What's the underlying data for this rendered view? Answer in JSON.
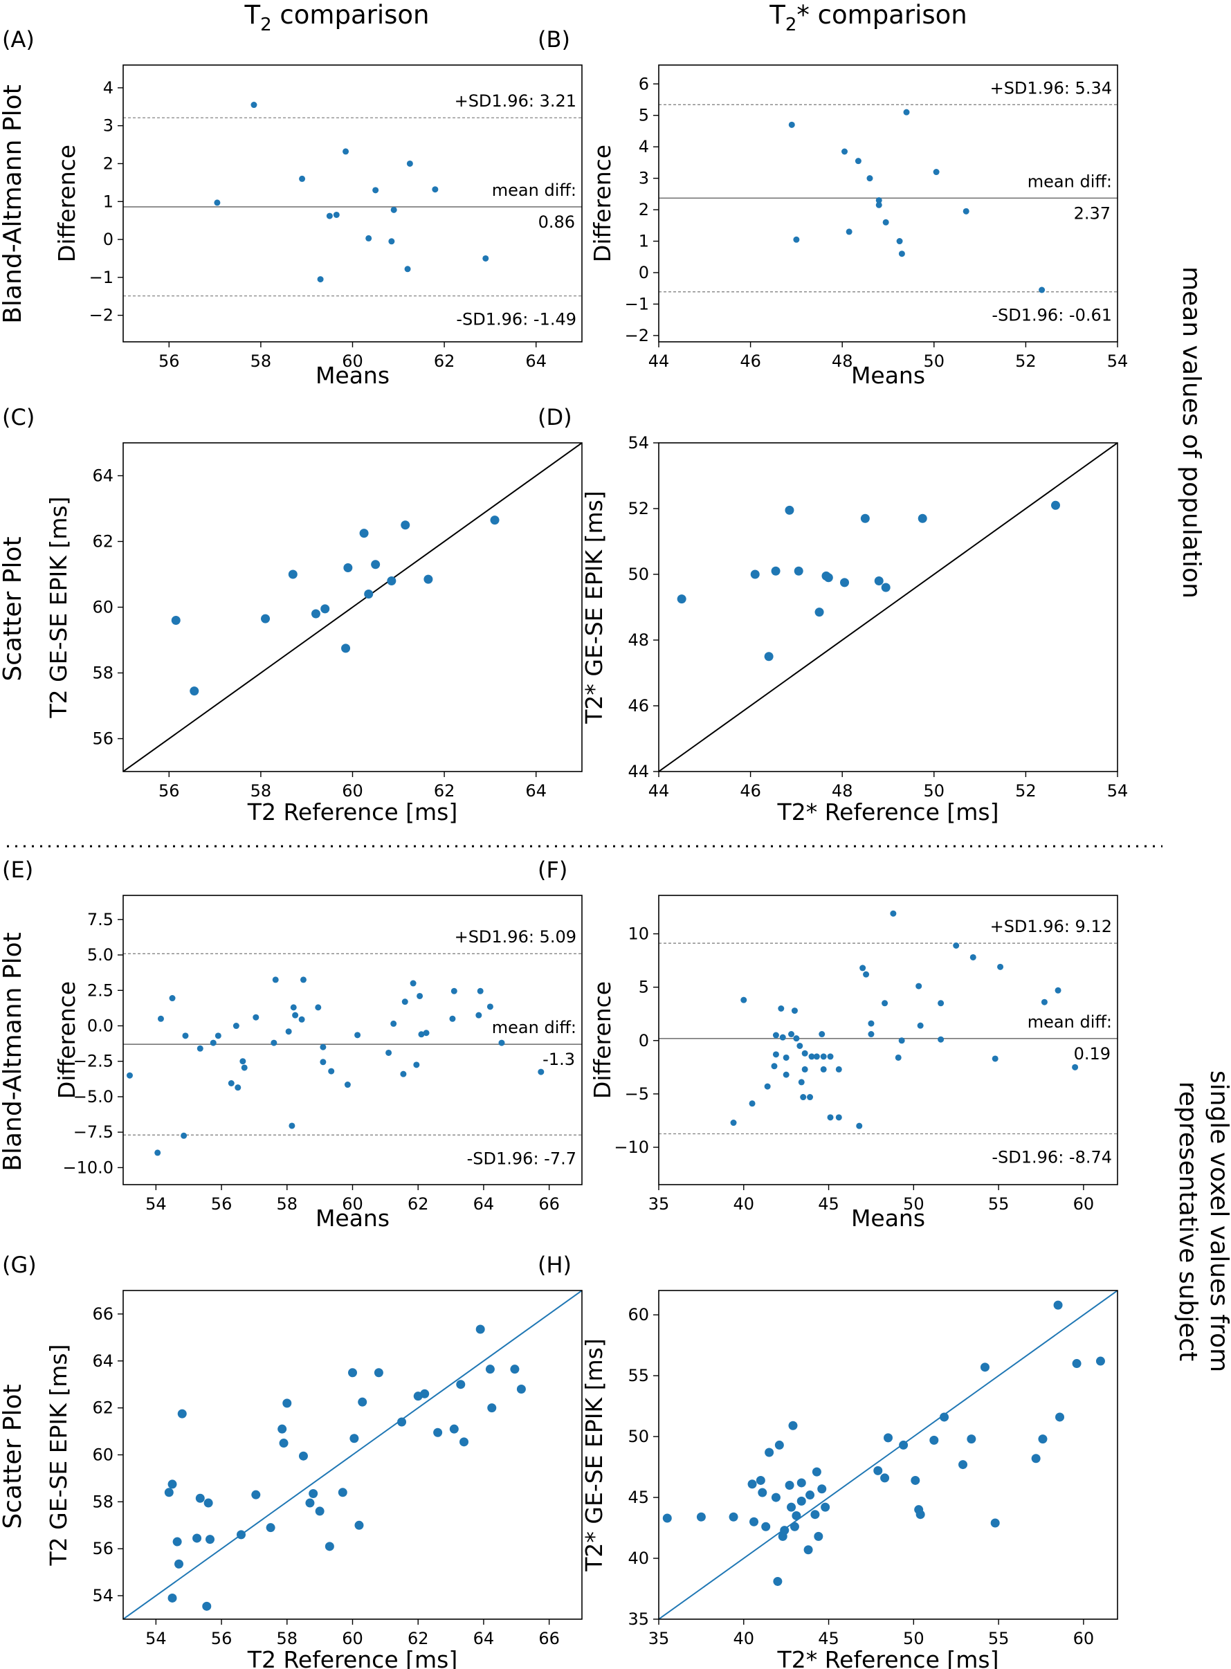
{
  "figure": {
    "column_titles": [
      "T2 comparison",
      "T2* comparison"
    ],
    "row_labels": {
      "bland_altmann": "Bland-Altmann Plot",
      "scatter": "Scatter Plot"
    },
    "side_labels": {
      "top": "mean values of population",
      "bottom_line1": "single voxel values from",
      "bottom_line2": "representative subject"
    },
    "colors": {
      "points": "#1f77b4",
      "identity_line_top": "#000000",
      "identity_line_bottom": "#1f77b4",
      "mean_line": "#777777",
      "sd_line": "#777777"
    }
  },
  "chart_data": [
    {
      "panel": "(A)",
      "type": "scatter",
      "subtype": "bland-altman",
      "xlabel": "Means",
      "ylabel": "Difference",
      "xlim": [
        55,
        65
      ],
      "ylim": [
        -2.7,
        4.6
      ],
      "xticks": [
        56,
        58,
        60,
        62,
        64
      ],
      "yticks": [
        -2,
        -1,
        0,
        1,
        2,
        3,
        4
      ],
      "mean_diff": 0.86,
      "upper": 3.21,
      "lower": -1.49,
      "mean_label": "mean diff:",
      "mean_value": "0.86",
      "upper_label": "+SD1.96: 3.21",
      "lower_label": "-SD1.96: -1.49",
      "points": [
        [
          57.05,
          0.97
        ],
        [
          57.85,
          3.55
        ],
        [
          58.9,
          1.6
        ],
        [
          59.3,
          -1.05
        ],
        [
          59.5,
          0.62
        ],
        [
          59.65,
          0.65
        ],
        [
          59.85,
          2.32
        ],
        [
          60.35,
          0.03
        ],
        [
          60.5,
          1.3
        ],
        [
          60.85,
          -0.05
        ],
        [
          60.9,
          0.78
        ],
        [
          61.2,
          -0.78
        ],
        [
          61.25,
          2.0
        ],
        [
          61.8,
          1.32
        ],
        [
          62.9,
          -0.5
        ]
      ]
    },
    {
      "panel": "(B)",
      "type": "scatter",
      "subtype": "bland-altman",
      "xlabel": "Means",
      "ylabel": "Difference",
      "xlim": [
        44,
        54
      ],
      "ylim": [
        -2.2,
        6.6
      ],
      "xticks": [
        44,
        46,
        48,
        50,
        52,
        54
      ],
      "yticks": [
        -2,
        -1,
        0,
        1,
        2,
        3,
        4,
        5,
        6
      ],
      "mean_diff": 2.37,
      "upper": 5.34,
      "lower": -0.61,
      "mean_label": "mean diff:",
      "mean_value": "2.37",
      "upper_label": "+SD1.96: 5.34",
      "lower_label": "-SD1.96: -0.61",
      "points": [
        [
          46.9,
          4.7
        ],
        [
          47.0,
          1.05
        ],
        [
          48.05,
          3.85
        ],
        [
          48.15,
          1.3
        ],
        [
          48.35,
          3.55
        ],
        [
          48.6,
          3.0
        ],
        [
          48.8,
          2.3
        ],
        [
          48.8,
          2.15
        ],
        [
          48.95,
          1.6
        ],
        [
          49.25,
          1.0
        ],
        [
          49.3,
          0.6
        ],
        [
          49.4,
          5.1
        ],
        [
          50.05,
          3.2
        ],
        [
          50.7,
          1.95
        ],
        [
          52.35,
          -0.55
        ]
      ]
    },
    {
      "panel": "(C)",
      "type": "scatter",
      "subtype": "identity",
      "xlabel": "T2 Reference [ms]",
      "ylabel": "T2 GE-SE EPIK [ms]",
      "xlim": [
        55,
        65
      ],
      "ylim": [
        55,
        65
      ],
      "xticks": [
        56,
        58,
        60,
        62,
        64
      ],
      "yticks": [
        56,
        58,
        60,
        62,
        64
      ],
      "points": [
        [
          56.15,
          59.6
        ],
        [
          56.55,
          57.45
        ],
        [
          58.1,
          59.65
        ],
        [
          58.7,
          61.0
        ],
        [
          59.2,
          59.8
        ],
        [
          59.4,
          59.95
        ],
        [
          59.85,
          58.75
        ],
        [
          59.9,
          61.2
        ],
        [
          60.25,
          62.25
        ],
        [
          60.35,
          60.4
        ],
        [
          60.5,
          61.3
        ],
        [
          60.85,
          60.8
        ],
        [
          61.15,
          62.5
        ],
        [
          61.65,
          60.85
        ],
        [
          63.1,
          62.65
        ]
      ]
    },
    {
      "panel": "(D)",
      "type": "scatter",
      "subtype": "identity",
      "xlabel": "T2* Reference [ms]",
      "ylabel": "T2* GE-SE EPIK [ms]",
      "xlim": [
        44,
        54
      ],
      "ylim": [
        44,
        54
      ],
      "xticks": [
        44,
        46,
        48,
        50,
        52,
        54
      ],
      "yticks": [
        44,
        46,
        48,
        50,
        52,
        54
      ],
      "points": [
        [
          44.5,
          49.25
        ],
        [
          46.1,
          50.0
        ],
        [
          46.4,
          47.5
        ],
        [
          46.55,
          50.1
        ],
        [
          46.85,
          51.95
        ],
        [
          47.05,
          50.1
        ],
        [
          47.5,
          48.85
        ],
        [
          47.65,
          49.95
        ],
        [
          47.7,
          49.9
        ],
        [
          48.05,
          49.75
        ],
        [
          48.5,
          51.7
        ],
        [
          48.8,
          49.8
        ],
        [
          48.95,
          49.6
        ],
        [
          49.75,
          51.7
        ],
        [
          52.65,
          52.1
        ]
      ]
    },
    {
      "panel": "(E)",
      "type": "scatter",
      "subtype": "bland-altman",
      "xlabel": "Means",
      "ylabel": "Difference",
      "xlim": [
        53,
        67
      ],
      "ylim": [
        -11.2,
        9.2
      ],
      "xticks": [
        54,
        56,
        58,
        60,
        62,
        64,
        66
      ],
      "yticks": [
        -10.0,
        -7.5,
        -5.0,
        -2.5,
        0.0,
        2.5,
        5.0,
        7.5
      ],
      "mean_diff": -1.3,
      "upper": 5.09,
      "lower": -7.7,
      "mean_label": "mean diff:",
      "mean_value": "-1.3",
      "upper_label": "+SD1.96: 5.09",
      "lower_label": "-SD1.96: -7.7",
      "points": [
        [
          53.2,
          -3.5
        ],
        [
          54.05,
          -8.95
        ],
        [
          54.15,
          0.5
        ],
        [
          54.5,
          1.95
        ],
        [
          54.85,
          -7.75
        ],
        [
          54.9,
          -0.7
        ],
        [
          55.35,
          -1.6
        ],
        [
          55.75,
          -1.2
        ],
        [
          55.9,
          -0.7
        ],
        [
          56.3,
          -4.05
        ],
        [
          56.45,
          0.0
        ],
        [
          56.5,
          -4.35
        ],
        [
          56.65,
          -2.5
        ],
        [
          56.7,
          -2.95
        ],
        [
          57.05,
          0.6
        ],
        [
          57.6,
          -1.2
        ],
        [
          57.65,
          3.25
        ],
        [
          58.05,
          -0.4
        ],
        [
          58.15,
          -7.05
        ],
        [
          58.2,
          1.3
        ],
        [
          58.25,
          0.75
        ],
        [
          58.45,
          0.45
        ],
        [
          58.5,
          3.25
        ],
        [
          58.95,
          1.3
        ],
        [
          59.1,
          -1.5
        ],
        [
          59.1,
          -2.55
        ],
        [
          59.35,
          -3.2
        ],
        [
          59.85,
          -4.15
        ],
        [
          60.15,
          -0.65
        ],
        [
          61.1,
          -1.9
        ],
        [
          61.25,
          0.15
        ],
        [
          61.55,
          -3.4
        ],
        [
          61.6,
          1.7
        ],
        [
          61.85,
          3.0
        ],
        [
          61.95,
          -2.75
        ],
        [
          62.05,
          2.1
        ],
        [
          62.1,
          -0.6
        ],
        [
          62.25,
          -0.5
        ],
        [
          63.05,
          0.5
        ],
        [
          63.1,
          2.45
        ],
        [
          63.85,
          0.75
        ],
        [
          63.9,
          2.45
        ],
        [
          64.2,
          1.35
        ],
        [
          64.55,
          -1.2
        ],
        [
          65.75,
          -3.25
        ]
      ]
    },
    {
      "panel": "(F)",
      "type": "scatter",
      "subtype": "bland-altman",
      "xlabel": "Means",
      "ylabel": "Difference",
      "xlim": [
        35,
        62
      ],
      "ylim": [
        -13.5,
        13.6
      ],
      "xticks": [
        35,
        40,
        45,
        50,
        55,
        60
      ],
      "yticks": [
        -10,
        -5,
        0,
        5,
        10
      ],
      "mean_diff": 0.19,
      "upper": 9.12,
      "lower": -8.74,
      "mean_label": "mean diff:",
      "mean_value": "0.19",
      "upper_label": "+SD1.96: 9.12",
      "lower_label": "-SD1.96: -8.74",
      "points": [
        [
          39.4,
          -7.7
        ],
        [
          40.0,
          3.8
        ],
        [
          40.5,
          -5.9
        ],
        [
          41.4,
          -4.3
        ],
        [
          41.8,
          -2.4
        ],
        [
          41.9,
          0.5
        ],
        [
          41.9,
          -1.3
        ],
        [
          42.2,
          3.0
        ],
        [
          42.3,
          0.3
        ],
        [
          42.5,
          -1.6
        ],
        [
          42.5,
          -3.2
        ],
        [
          42.8,
          0.6
        ],
        [
          43.0,
          2.8
        ],
        [
          43.1,
          0.2
        ],
        [
          43.3,
          -0.5
        ],
        [
          43.4,
          -3.9
        ],
        [
          43.5,
          -5.3
        ],
        [
          43.6,
          -1.2
        ],
        [
          43.6,
          -2.7
        ],
        [
          43.9,
          -5.3
        ],
        [
          44.0,
          -1.5
        ],
        [
          44.3,
          -1.5
        ],
        [
          44.6,
          0.6
        ],
        [
          44.7,
          -1.5
        ],
        [
          44.7,
          -2.7
        ],
        [
          45.1,
          -7.2
        ],
        [
          45.1,
          -1.5
        ],
        [
          45.6,
          -2.7
        ],
        [
          45.6,
          -7.2
        ],
        [
          46.8,
          -8.0
        ],
        [
          47.0,
          6.8
        ],
        [
          47.2,
          6.2
        ],
        [
          47.5,
          1.6
        ],
        [
          47.5,
          0.6
        ],
        [
          48.3,
          3.5
        ],
        [
          48.8,
          11.9
        ],
        [
          49.1,
          -1.6
        ],
        [
          49.3,
          0.0
        ],
        [
          50.3,
          5.1
        ],
        [
          50.4,
          1.4
        ],
        [
          51.6,
          3.5
        ],
        [
          51.6,
          0.1
        ],
        [
          52.5,
          8.9
        ],
        [
          53.5,
          7.8
        ],
        [
          54.8,
          -1.7
        ],
        [
          55.1,
          6.9
        ],
        [
          57.7,
          3.6
        ],
        [
          58.5,
          4.7
        ],
        [
          59.5,
          -2.5
        ]
      ]
    },
    {
      "panel": "(G)",
      "type": "scatter",
      "subtype": "identity",
      "xlabel": "T2 Reference [ms]",
      "ylabel": "T2 GE-SE EPIK [ms]",
      "xlim": [
        53,
        67
      ],
      "ylim": [
        53,
        67
      ],
      "xticks": [
        54,
        56,
        58,
        60,
        62,
        64,
        66
      ],
      "yticks": [
        54,
        56,
        58,
        60,
        62,
        64,
        66
      ],
      "points": [
        [
          54.4,
          58.4
        ],
        [
          54.5,
          58.75
        ],
        [
          54.5,
          53.9
        ],
        [
          54.65,
          56.3
        ],
        [
          54.7,
          55.35
        ],
        [
          54.8,
          61.75
        ],
        [
          55.25,
          56.45
        ],
        [
          55.35,
          58.15
        ],
        [
          55.55,
          53.55
        ],
        [
          55.6,
          57.95
        ],
        [
          55.65,
          56.4
        ],
        [
          56.6,
          56.6
        ],
        [
          57.05,
          58.3
        ],
        [
          57.5,
          56.9
        ],
        [
          57.85,
          61.1
        ],
        [
          57.9,
          60.5
        ],
        [
          58.0,
          62.2
        ],
        [
          58.5,
          59.95
        ],
        [
          58.7,
          57.95
        ],
        [
          58.8,
          58.35
        ],
        [
          59.0,
          57.6
        ],
        [
          59.3,
          56.1
        ],
        [
          59.7,
          58.4
        ],
        [
          60.0,
          63.5
        ],
        [
          60.05,
          60.7
        ],
        [
          60.2,
          57.0
        ],
        [
          60.3,
          62.25
        ],
        [
          60.8,
          63.5
        ],
        [
          61.5,
          61.4
        ],
        [
          62.0,
          62.5
        ],
        [
          62.2,
          62.6
        ],
        [
          62.6,
          60.95
        ],
        [
          63.1,
          61.1
        ],
        [
          63.3,
          63.0
        ],
        [
          63.4,
          60.55
        ],
        [
          63.9,
          65.35
        ],
        [
          64.2,
          63.65
        ],
        [
          64.25,
          62.0
        ],
        [
          64.95,
          63.65
        ],
        [
          65.15,
          62.8
        ]
      ]
    },
    {
      "panel": "(H)",
      "type": "scatter",
      "subtype": "identity",
      "xlabel": "T2* Reference [ms]",
      "ylabel": "T2* GE-SE EPIK [ms]",
      "xlim": [
        35,
        62
      ],
      "ylim": [
        35,
        62
      ],
      "xticks": [
        35,
        40,
        45,
        50,
        55,
        60
      ],
      "yticks": [
        35,
        40,
        45,
        50,
        55,
        60
      ],
      "points": [
        [
          35.5,
          43.3
        ],
        [
          37.5,
          43.4
        ],
        [
          39.4,
          43.4
        ],
        [
          40.5,
          46.1
        ],
        [
          40.6,
          43.0
        ],
        [
          41.0,
          46.4
        ],
        [
          41.1,
          45.4
        ],
        [
          41.3,
          42.6
        ],
        [
          41.5,
          48.7
        ],
        [
          41.9,
          45.0
        ],
        [
          42.0,
          38.1
        ],
        [
          42.1,
          49.3
        ],
        [
          42.3,
          41.8
        ],
        [
          42.4,
          42.3
        ],
        [
          42.7,
          46.0
        ],
        [
          42.8,
          44.2
        ],
        [
          42.9,
          50.9
        ],
        [
          43.0,
          42.6
        ],
        [
          43.1,
          43.5
        ],
        [
          43.4,
          46.2
        ],
        [
          43.4,
          44.7
        ],
        [
          43.8,
          40.7
        ],
        [
          43.9,
          45.2
        ],
        [
          44.2,
          43.6
        ],
        [
          44.3,
          47.1
        ],
        [
          44.4,
          41.8
        ],
        [
          44.6,
          45.7
        ],
        [
          44.8,
          44.2
        ],
        [
          47.9,
          47.2
        ],
        [
          48.3,
          46.6
        ],
        [
          48.5,
          49.9
        ],
        [
          49.4,
          49.3
        ],
        [
          50.1,
          46.4
        ],
        [
          50.3,
          44.0
        ],
        [
          50.4,
          43.6
        ],
        [
          51.2,
          49.7
        ],
        [
          51.8,
          51.6
        ],
        [
          52.9,
          47.7
        ],
        [
          53.4,
          49.8
        ],
        [
          54.2,
          55.7
        ],
        [
          54.8,
          42.9
        ],
        [
          57.2,
          48.2
        ],
        [
          57.6,
          49.8
        ],
        [
          58.5,
          60.8
        ],
        [
          58.6,
          51.6
        ],
        [
          59.6,
          56.0
        ],
        [
          61.0,
          56.2
        ]
      ]
    }
  ]
}
